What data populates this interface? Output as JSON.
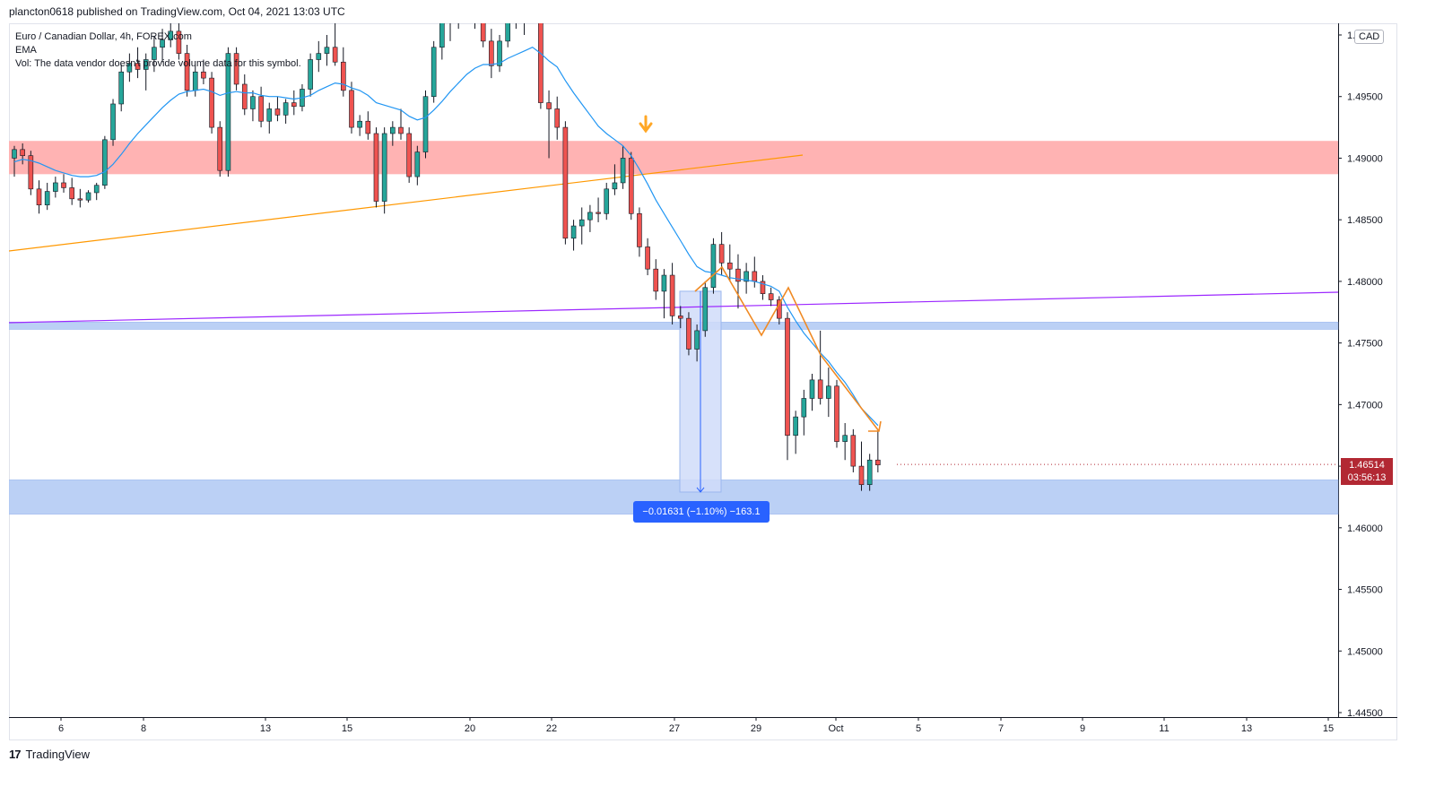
{
  "header": {
    "published_text": "plancton0618 published on TradingView.com, Oct 04, 2021 13:03 UTC"
  },
  "legend": {
    "symbol_line": "Euro / Canadian Dollar, 4h, FOREX.com",
    "ema_line": "EMA",
    "vol_line": "Vol: The data vendor doesn't provide volume data for this symbol."
  },
  "currency": "CAD",
  "last_price": {
    "price": "1.46514",
    "countdown": "03:56:13"
  },
  "measure": {
    "label": "−0.01631 (−1.10%) −163.1"
  },
  "footer": {
    "brand": "TradingView",
    "logo_text": "17"
  },
  "colors": {
    "up": "#26a69a",
    "down": "#ef5350",
    "wick": "#131722",
    "ema": "#2196f3",
    "resistance_zone": "#ffb3b3",
    "support_zone": "#bbd0f5",
    "trendline_orange": "#ff9800",
    "trendline_purple": "#9c27ff",
    "measure_fill": "#d0dcf9",
    "measure_line": "#2962ff",
    "projection": "#f08a24"
  },
  "chart_data": {
    "type": "candlestick",
    "symbol": "Euro / Canadian Dollar",
    "timeframe": "4h",
    "ylim": [
      1.445,
      1.5
    ],
    "y_ticks": [
      "1.50000",
      "1.49500",
      "1.49000",
      "1.48500",
      "1.48000",
      "1.47500",
      "1.47000",
      "1.46500",
      "1.46000",
      "1.45500",
      "1.45000",
      "1.44500"
    ],
    "x_ticks": [
      "6",
      "8",
      "13",
      "15",
      "20",
      "22",
      "27",
      "29",
      "Oct",
      "5",
      "7",
      "9",
      "11",
      "13",
      "15"
    ],
    "zones": [
      {
        "kind": "resistance",
        "low": 1.4887,
        "high": 1.4914
      },
      {
        "kind": "support",
        "low": 1.4761,
        "high": 1.4767
      },
      {
        "kind": "support",
        "low": 1.4611,
        "high": 1.4639
      }
    ],
    "measure": {
      "from": 1.4792,
      "to": 1.4629,
      "change": -0.01631,
      "percent": -1.1,
      "pips": -163.1
    },
    "candles": [
      [
        1.49,
        1.491,
        1.4885,
        1.4907
      ],
      [
        1.4907,
        1.4912,
        1.4895,
        1.4902
      ],
      [
        1.4902,
        1.4906,
        1.487,
        1.4875
      ],
      [
        1.4875,
        1.4882,
        1.4855,
        1.4862
      ],
      [
        1.4862,
        1.488,
        1.4858,
        1.4873
      ],
      [
        1.4873,
        1.4885,
        1.4868,
        1.488
      ],
      [
        1.488,
        1.4887,
        1.4872,
        1.4876
      ],
      [
        1.4876,
        1.4884,
        1.4862,
        1.4867
      ],
      [
        1.4867,
        1.4875,
        1.486,
        1.4866
      ],
      [
        1.4866,
        1.4874,
        1.4864,
        1.4872
      ],
      [
        1.4872,
        1.488,
        1.4866,
        1.4878
      ],
      [
        1.4878,
        1.4918,
        1.4875,
        1.4915
      ],
      [
        1.4915,
        1.4948,
        1.491,
        1.4944
      ],
      [
        1.4944,
        1.4976,
        1.4938,
        1.497
      ],
      [
        1.497,
        1.4985,
        1.4962,
        1.4977
      ],
      [
        1.4977,
        1.499,
        1.4965,
        1.4972
      ],
      [
        1.4972,
        1.4985,
        1.4955,
        1.498
      ],
      [
        1.498,
        1.4999,
        1.497,
        1.499
      ],
      [
        1.499,
        1.5005,
        1.4978,
        1.4996
      ],
      [
        1.4996,
        1.501,
        1.499,
        1.5003
      ],
      [
        1.5003,
        1.5012,
        1.498,
        1.4985
      ],
      [
        1.4985,
        1.4992,
        1.495,
        1.4955
      ],
      [
        1.4955,
        1.4975,
        1.495,
        1.497
      ],
      [
        1.497,
        1.498,
        1.496,
        1.4965
      ],
      [
        1.4965,
        1.497,
        1.492,
        1.4925
      ],
      [
        1.4925,
        1.493,
        1.4885,
        1.489
      ],
      [
        1.489,
        1.499,
        1.4885,
        1.4985
      ],
      [
        1.4985,
        1.499,
        1.4955,
        1.496
      ],
      [
        1.496,
        1.4968,
        1.4935,
        1.494
      ],
      [
        1.494,
        1.4955,
        1.493,
        1.495
      ],
      [
        1.495,
        1.4958,
        1.4925,
        1.493
      ],
      [
        1.493,
        1.4945,
        1.492,
        1.494
      ],
      [
        1.494,
        1.495,
        1.493,
        1.4935
      ],
      [
        1.4935,
        1.4948,
        1.4928,
        1.4945
      ],
      [
        1.4945,
        1.4955,
        1.4935,
        1.4942
      ],
      [
        1.4942,
        1.496,
        1.4938,
        1.4956
      ],
      [
        1.4956,
        1.4985,
        1.495,
        1.498
      ],
      [
        1.498,
        1.4995,
        1.497,
        1.4985
      ],
      [
        1.4985,
        1.5,
        1.4975,
        1.499
      ],
      [
        1.499,
        1.501,
        1.4975,
        1.4978
      ],
      [
        1.4978,
        1.499,
        1.495,
        1.4955
      ],
      [
        1.4955,
        1.4962,
        1.492,
        1.4925
      ],
      [
        1.4925,
        1.4935,
        1.4918,
        1.493
      ],
      [
        1.493,
        1.4938,
        1.4915,
        1.492
      ],
      [
        1.492,
        1.4925,
        1.486,
        1.4865
      ],
      [
        1.4865,
        1.4925,
        1.4855,
        1.492
      ],
      [
        1.492,
        1.493,
        1.491,
        1.4925
      ],
      [
        1.4925,
        1.494,
        1.4915,
        1.492
      ],
      [
        1.492,
        1.4925,
        1.488,
        1.4885
      ],
      [
        1.4885,
        1.491,
        1.4878,
        1.4905
      ],
      [
        1.4905,
        1.4955,
        1.49,
        1.495
      ],
      [
        1.495,
        1.4995,
        1.4945,
        1.499
      ],
      [
        1.499,
        1.5015,
        1.498,
        1.501
      ],
      [
        1.501,
        1.502,
        1.4995,
        1.5015
      ],
      [
        1.5015,
        1.503,
        1.5005,
        1.5025
      ],
      [
        1.5025,
        1.5035,
        1.5015,
        1.502
      ],
      [
        1.502,
        1.503,
        1.5005,
        1.5015
      ],
      [
        1.5015,
        1.5025,
        1.499,
        1.4995
      ],
      [
        1.4995,
        1.5005,
        1.4965,
        1.4975
      ],
      [
        1.4975,
        1.5,
        1.497,
        1.4995
      ],
      [
        1.4995,
        1.502,
        1.499,
        1.5015
      ],
      [
        1.5015,
        1.503,
        1.5005,
        1.501
      ],
      [
        1.501,
        1.5025,
        1.5,
        1.502
      ],
      [
        1.502,
        1.503,
        1.501,
        1.5015
      ],
      [
        1.5015,
        1.502,
        1.494,
        1.4945
      ],
      [
        1.4945,
        1.4955,
        1.49,
        1.494
      ],
      [
        1.494,
        1.495,
        1.4915,
        1.4925
      ],
      [
        1.4925,
        1.493,
        1.483,
        1.4835
      ],
      [
        1.4835,
        1.485,
        1.4825,
        1.4845
      ],
      [
        1.4845,
        1.486,
        1.483,
        1.485
      ],
      [
        1.485,
        1.4862,
        1.484,
        1.4856
      ],
      [
        1.4856,
        1.4868,
        1.4848,
        1.4855
      ],
      [
        1.4855,
        1.488,
        1.485,
        1.4875
      ],
      [
        1.4875,
        1.4895,
        1.487,
        1.488
      ],
      [
        1.488,
        1.491,
        1.4875,
        1.49
      ],
      [
        1.49,
        1.4905,
        1.485,
        1.4855
      ],
      [
        1.4855,
        1.486,
        1.482,
        1.4828
      ],
      [
        1.4828,
        1.4835,
        1.4805,
        1.481
      ],
      [
        1.481,
        1.4818,
        1.4785,
        1.4792
      ],
      [
        1.4792,
        1.481,
        1.477,
        1.4805
      ],
      [
        1.4805,
        1.4815,
        1.4765,
        1.4772
      ],
      [
        1.4772,
        1.478,
        1.4762,
        1.477
      ],
      [
        1.477,
        1.4775,
        1.474,
        1.4745
      ],
      [
        1.4745,
        1.4765,
        1.4735,
        1.476
      ],
      [
        1.476,
        1.48,
        1.4755,
        1.4795
      ],
      [
        1.4795,
        1.4835,
        1.479,
        1.483
      ],
      [
        1.483,
        1.484,
        1.4805,
        1.4815
      ],
      [
        1.4815,
        1.483,
        1.48,
        1.481
      ],
      [
        1.481,
        1.4822,
        1.4778,
        1.48
      ],
      [
        1.48,
        1.4815,
        1.479,
        1.4808
      ],
      [
        1.4808,
        1.482,
        1.4795,
        1.48
      ],
      [
        1.48,
        1.4805,
        1.4785,
        1.479
      ],
      [
        1.479,
        1.4795,
        1.478,
        1.4785
      ],
      [
        1.4785,
        1.4788,
        1.4765,
        1.477
      ],
      [
        1.477,
        1.4775,
        1.4655,
        1.4675
      ],
      [
        1.4675,
        1.4695,
        1.466,
        1.469
      ],
      [
        1.469,
        1.4712,
        1.4675,
        1.4705
      ],
      [
        1.4705,
        1.4725,
        1.4695,
        1.472
      ],
      [
        1.472,
        1.476,
        1.47,
        1.4705
      ],
      [
        1.4705,
        1.473,
        1.469,
        1.4715
      ],
      [
        1.4715,
        1.472,
        1.4665,
        1.467
      ],
      [
        1.467,
        1.4685,
        1.4655,
        1.4675
      ],
      [
        1.4675,
        1.468,
        1.4645,
        1.465
      ],
      [
        1.465,
        1.467,
        1.463,
        1.4635
      ],
      [
        1.4635,
        1.466,
        1.463,
        1.4655
      ],
      [
        1.4655,
        1.468,
        1.4645,
        1.4651
      ]
    ],
    "ema": [
      1.4897,
      1.4899,
      1.4898,
      1.4896,
      1.4893,
      1.489,
      1.4888,
      1.4886,
      1.4885,
      1.4885,
      1.4886,
      1.4889,
      1.4895,
      1.4903,
      1.4912,
      1.492,
      1.4927,
      1.4934,
      1.4941,
      1.4947,
      1.4952,
      1.4954,
      1.4955,
      1.4956,
      1.4954,
      1.4951,
      1.4953,
      1.4954,
      1.4953,
      1.4953,
      1.4951,
      1.495,
      1.495,
      1.4949,
      1.4948,
      1.4949,
      1.4951,
      1.4955,
      1.4958,
      1.4961,
      1.496,
      1.4957,
      1.4955,
      1.4951,
      1.4945,
      1.4943,
      1.4941,
      1.4939,
      1.4934,
      1.4931,
      1.4933,
      1.4939,
      1.4946,
      1.4954,
      1.4961,
      1.4968,
      1.4973,
      1.4976,
      1.4976,
      1.4977,
      1.4981,
      1.4984,
      1.4987,
      1.499,
      1.4985,
      1.4979,
      1.4974,
      1.4963,
      1.4953,
      1.4944,
      1.4935,
      1.4926,
      1.492,
      1.4915,
      1.491,
      1.4902,
      1.4891,
      1.4879,
      1.4866,
      1.4855,
      1.4844,
      1.4833,
      1.4822,
      1.4812,
      1.4808,
      1.4807,
      1.4805,
      1.4803,
      1.4802,
      1.4801,
      1.48,
      1.4798,
      1.4796,
      1.4792,
      1.4779,
      1.4768,
      1.4758,
      1.475,
      1.4742,
      1.4735,
      1.4726,
      1.4718,
      1.4708,
      1.4697,
      1.469,
      1.4683
    ]
  }
}
